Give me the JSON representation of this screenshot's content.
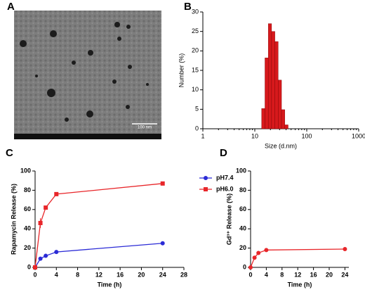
{
  "image": {
    "label": "A",
    "scale_bar": "100 nm"
  },
  "chart_data": [
    {
      "type": "histogram",
      "label": "B",
      "xlabel": "Size (d.nm)",
      "ylabel": "Number (%)",
      "bins": [
        13.54,
        15.69,
        18.17,
        21.04,
        24.36,
        28.21,
        32.67,
        37.84,
        43.82
      ],
      "values": [
        5.2,
        18.2,
        27.0,
        25.0,
        22.4,
        12.5,
        4.9,
        1.0
      ],
      "color": "#d7191c",
      "xscale": "log",
      "xlim": [
        1,
        1000
      ],
      "xticks": [
        1,
        10,
        100,
        1000
      ],
      "ylim": [
        0,
        30
      ],
      "yticks": [
        0,
        5,
        10,
        15,
        20,
        25,
        30
      ]
    },
    {
      "type": "line",
      "label": "C",
      "xlabel": "Time (h)",
      "ylabel": "Rapamycin Release (%)",
      "x": [
        0,
        1,
        2,
        4,
        24
      ],
      "series": [
        {
          "name": "pH7.4",
          "color": "#2b2bd6",
          "marker": "circle",
          "values": [
            0,
            9,
            12,
            16,
            25
          ],
          "errors": [
            0,
            1,
            1,
            1,
            2
          ]
        },
        {
          "name": "pH6.0",
          "color": "#e8262a",
          "marker": "square",
          "values": [
            0,
            46,
            62,
            76,
            87
          ],
          "errors": [
            0,
            5,
            1,
            1,
            1
          ]
        }
      ],
      "legend": "upper right",
      "xlim": [
        0,
        28
      ],
      "xticks": [
        0,
        4,
        8,
        12,
        16,
        20,
        24,
        28
      ],
      "ylim": [
        0,
        100
      ],
      "yticks": [
        0,
        20,
        40,
        60,
        80,
        100
      ]
    },
    {
      "type": "line",
      "label": "D",
      "xlabel": "Time (h)",
      "ylabel": "Gd³⁺ Release (%)",
      "x": [
        0,
        1,
        2,
        4,
        24
      ],
      "series": [
        {
          "color": "#e8262a",
          "marker": "circle",
          "values": [
            0,
            10,
            15,
            18,
            19
          ],
          "errors": [
            0,
            1,
            1,
            1,
            1
          ]
        }
      ],
      "xlim": [
        0,
        25
      ],
      "xticks": [
        0,
        4,
        8,
        12,
        16,
        20,
        24
      ],
      "ylim": [
        0,
        100
      ],
      "yticks": [
        0,
        20,
        40,
        60,
        80,
        100
      ]
    }
  ]
}
